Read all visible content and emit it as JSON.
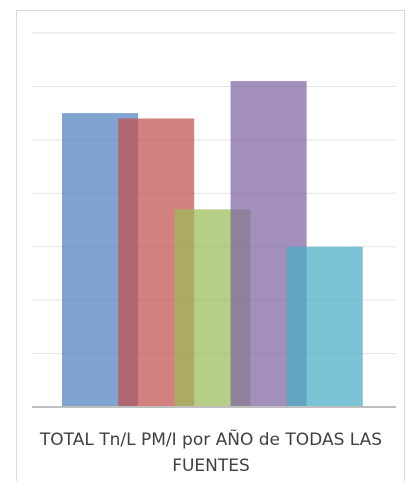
{
  "chart_data": {
    "type": "bar",
    "categories": [
      "TOTAL Tn/L PM/I por AÑO de TODAS LAS FUENTES"
    ],
    "series": [
      {
        "color": "#4f81bd",
        "values": [
          5.5
        ]
      },
      {
        "color": "#c0504d",
        "values": [
          5.4
        ]
      },
      {
        "color": "#9bbb59",
        "values": [
          3.7
        ]
      },
      {
        "color": "#8064a2",
        "values": [
          6.1
        ]
      },
      {
        "color": "#4bacc6",
        "values": [
          3.0
        ]
      }
    ],
    "ylim": [
      0,
      7
    ],
    "yticks": [
      0,
      1,
      2,
      3,
      4,
      5,
      6,
      7
    ],
    "grid": true
  }
}
